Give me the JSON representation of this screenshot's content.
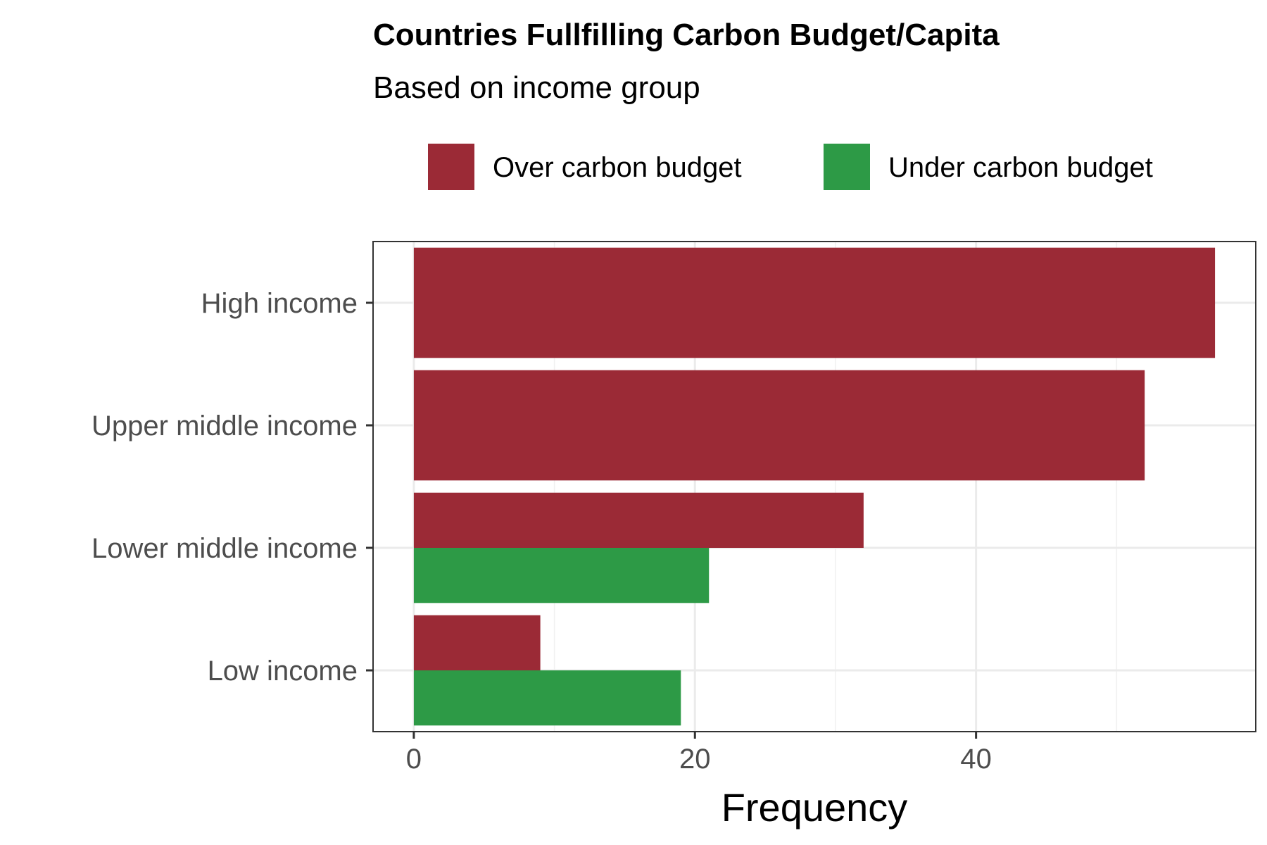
{
  "chart_data": {
    "type": "bar",
    "orientation": "horizontal",
    "title": "Countries Fullfilling Carbon Budget/Capita",
    "subtitle": "Based on income group",
    "xlabel": "Frequency",
    "ylabel": "",
    "categories": [
      "High income",
      "Upper middle income",
      "Lower middle income",
      "Low income"
    ],
    "series": [
      {
        "name": "Over carbon budget",
        "color": "#9b2a36",
        "values": [
          57,
          52,
          32,
          9
        ]
      },
      {
        "name": "Under carbon budget",
        "color": "#2d9a46",
        "values": [
          0,
          0,
          21,
          19
        ]
      }
    ],
    "xlim": [
      -2.9,
      59.9
    ],
    "x_ticks": [
      0,
      20,
      40
    ],
    "x_tick_labels": [
      "0",
      "20",
      "40"
    ],
    "grid": true,
    "legend_position": "top"
  }
}
